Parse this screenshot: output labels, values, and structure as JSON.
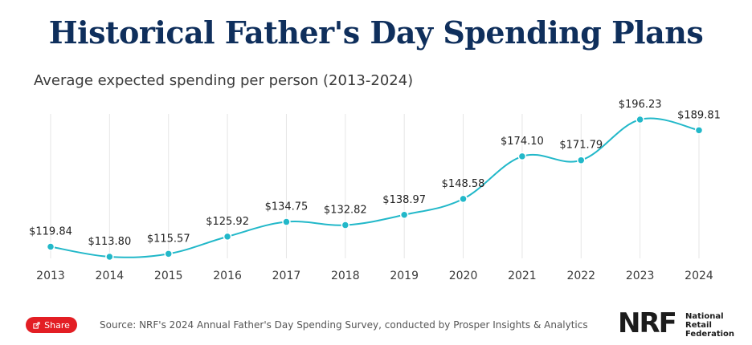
{
  "title": "Historical Father's Day Spending Plans",
  "subtitle": "Average expected spending per person (2013-2024)",
  "chart_data": {
    "type": "line",
    "categories": [
      "2013",
      "2014",
      "2015",
      "2016",
      "2017",
      "2018",
      "2019",
      "2020",
      "2021",
      "2022",
      "2023",
      "2024"
    ],
    "values": [
      119.84,
      113.8,
      115.57,
      125.92,
      134.75,
      132.82,
      138.97,
      148.58,
      174.1,
      171.79,
      196.23,
      189.81
    ],
    "labels": [
      "$119.84",
      "$113.80",
      "$115.57",
      "$125.92",
      "$134.75",
      "$132.82",
      "$138.97",
      "$148.58",
      "$174.10",
      "$171.79",
      "$196.23",
      "$189.81"
    ],
    "title": "Historical Father's Day Spending Plans",
    "xlabel": "",
    "ylabel": "",
    "ylim": [
      110,
      200
    ],
    "grid": "vertical",
    "line_color": "#22b8c9"
  },
  "footer": {
    "share_label": "Share",
    "source": "Source: NRF's 2024 Annual Father's Day Spending Survey, conducted by Prosper Insights & Analytics",
    "logo_text": "NRF",
    "logo_sub": [
      "National",
      "Retail",
      "Federation"
    ]
  }
}
